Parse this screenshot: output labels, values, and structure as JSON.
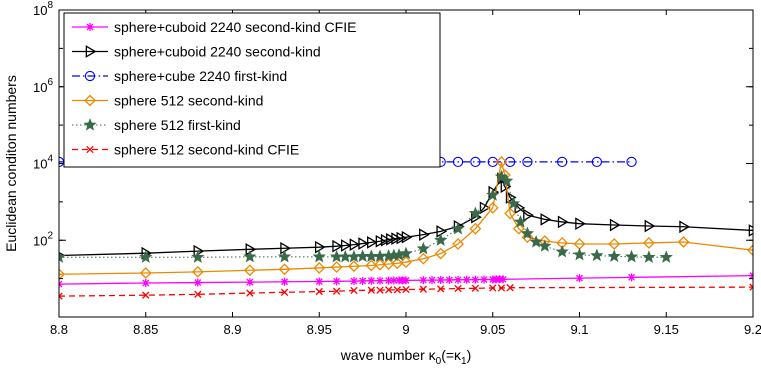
{
  "chart_data": {
    "type": "line",
    "title": "",
    "xlabel": "wave number κ",
    "xlabel_sub1": "0",
    "xlabel_mid": "(=κ",
    "xlabel_sub2": "1",
    "xlabel_end": ")",
    "ylabel": "Euclidean conditon numbers",
    "xlim": [
      8.8,
      9.2
    ],
    "ylim": [
      1,
      100000000
    ],
    "yscale": "log",
    "grid": false,
    "legend_position": "top-left",
    "x_ticks": [
      {
        "value": 8.8,
        "label": "8.8"
      },
      {
        "value": 8.85,
        "label": "8.85"
      },
      {
        "value": 8.9,
        "label": "8.9"
      },
      {
        "value": 8.95,
        "label": "8.95"
      },
      {
        "value": 9.0,
        "label": "9"
      },
      {
        "value": 9.05,
        "label": "9.05"
      },
      {
        "value": 9.1,
        "label": "9.1"
      },
      {
        "value": 9.15,
        "label": "9.15"
      },
      {
        "value": 9.2,
        "label": "9.2"
      }
    ],
    "y_ticks": [
      {
        "value": 100,
        "base": "10",
        "exp": "2"
      },
      {
        "value": 10000,
        "base": "10",
        "exp": "4"
      },
      {
        "value": 1000000,
        "base": "10",
        "exp": "6"
      },
      {
        "value": 100000000,
        "base": "10",
        "exp": "8"
      }
    ],
    "series": [
      {
        "name": "sphere+cuboid 2240 second-kind CFIE",
        "color": "#ff00ff",
        "marker": "asterisk",
        "dash": "solid",
        "x": [
          8.8,
          8.85,
          8.88,
          8.91,
          8.93,
          8.95,
          8.96,
          8.97,
          8.975,
          8.98,
          8.985,
          8.99,
          8.993,
          8.996,
          8.998,
          9.0,
          9.01,
          9.015,
          9.02,
          9.025,
          9.03,
          9.035,
          9.04,
          9.045,
          9.05,
          9.052,
          9.054,
          9.056,
          9.1,
          9.13,
          9.2
        ],
        "y": [
          7.2,
          7.7,
          7.9,
          8.1,
          8.3,
          8.4,
          8.5,
          8.6,
          8.7,
          8.8,
          8.85,
          8.9,
          8.95,
          9.0,
          9.0,
          9.0,
          9.1,
          9.15,
          9.2,
          9.25,
          9.3,
          9.35,
          9.4,
          9.45,
          9.5,
          9.55,
          9.6,
          9.6,
          10.3,
          10.8,
          12.0
        ]
      },
      {
        "name": "sphere+cuboid 2240 second-kind",
        "color": "#000000",
        "marker": "triangle-right",
        "dash": "solid",
        "x": [
          8.8,
          8.85,
          8.88,
          8.91,
          8.93,
          8.95,
          8.96,
          8.965,
          8.97,
          8.975,
          8.98,
          8.985,
          8.988,
          8.991,
          8.994,
          8.997,
          9.0,
          9.01,
          9.02,
          9.03,
          9.04,
          9.045,
          9.05,
          9.055,
          9.057,
          9.06,
          9.065,
          9.07,
          9.08,
          9.09,
          9.1,
          9.12,
          9.14,
          9.16,
          9.2
        ],
        "y": [
          40,
          46,
          52,
          58,
          62,
          66,
          70,
          73,
          77,
          82,
          88,
          94,
          100,
          106,
          110,
          114,
          120,
          140,
          170,
          230,
          400,
          700,
          1800,
          4000,
          2500,
          1300,
          700,
          450,
          350,
          300,
          270,
          250,
          235,
          225,
          180
        ]
      },
      {
        "name": "sphere+cube 2240 first-kind",
        "color": "#0000ff",
        "marker": "circle",
        "dash": "dashdot",
        "x": [
          8.8,
          8.87,
          8.92,
          8.95,
          8.97,
          8.98,
          8.986,
          8.99,
          8.993,
          8.996,
          9.0,
          9.02,
          9.03,
          9.04,
          9.05,
          9.06,
          9.07,
          9.09,
          9.11,
          9.13
        ],
        "y": [
          11000,
          11000,
          11000,
          11000,
          11000,
          11000,
          11000,
          11000,
          11000,
          11000,
          11000,
          11000,
          11000,
          11000,
          11000,
          11000,
          11000,
          11000,
          11000,
          11000
        ]
      },
      {
        "name": "sphere 512 second-kind",
        "color": "#ee8800",
        "marker": "diamond",
        "dash": "solid",
        "x": [
          8.8,
          8.85,
          8.88,
          8.91,
          8.93,
          8.95,
          8.96,
          8.97,
          8.98,
          8.985,
          8.99,
          8.995,
          9.0,
          9.01,
          9.02,
          9.03,
          9.04,
          9.05,
          9.055,
          9.057,
          9.06,
          9.065,
          9.07,
          9.08,
          9.09,
          9.1,
          9.12,
          9.14,
          9.16,
          9.2
        ],
        "y": [
          13,
          14,
          15,
          16.5,
          17.5,
          19,
          20,
          21,
          22,
          23,
          24,
          25,
          27,
          33,
          45,
          80,
          200,
          700,
          11000,
          5000,
          500,
          200,
          120,
          95,
          85,
          80,
          80,
          85,
          90,
          55
        ]
      },
      {
        "name": "sphere 512 first-kind",
        "color": "#3a6a4a",
        "marker": "star",
        "dash": "dotted",
        "x": [
          8.8,
          8.85,
          8.88,
          8.91,
          8.93,
          8.95,
          8.96,
          8.965,
          8.97,
          8.975,
          8.98,
          8.985,
          8.99,
          8.993,
          8.996,
          9.0,
          9.01,
          9.02,
          9.03,
          9.04,
          9.05,
          9.055,
          9.058,
          9.062,
          9.066,
          9.07,
          9.075,
          9.08,
          9.09,
          9.1,
          9.11,
          9.12,
          9.13,
          9.14,
          9.15
        ],
        "y": [
          36,
          36,
          36,
          37,
          37,
          37,
          37,
          37,
          37,
          38,
          38,
          38,
          39,
          40,
          41,
          45,
          60,
          100,
          200,
          500,
          1500,
          4500,
          3500,
          900,
          300,
          150,
          90,
          70,
          50,
          42,
          40,
          38,
          37,
          36,
          36
        ]
      },
      {
        "name": "sphere 512 second-kind CFIE",
        "color": "#ff0000",
        "marker": "cross",
        "dash": "dashed",
        "x": [
          8.8,
          8.85,
          8.88,
          8.91,
          8.93,
          8.95,
          8.96,
          8.97,
          8.98,
          8.985,
          8.99,
          8.995,
          9.0,
          9.01,
          9.02,
          9.03,
          9.04,
          9.05,
          9.055,
          9.06,
          9.2
        ],
        "y": [
          3.5,
          3.7,
          3.9,
          4.2,
          4.4,
          4.6,
          4.7,
          4.9,
          5.0,
          5.0,
          5.1,
          5.1,
          5.2,
          5.3,
          5.4,
          5.5,
          5.6,
          5.7,
          5.7,
          5.8,
          6.0
        ]
      }
    ]
  }
}
